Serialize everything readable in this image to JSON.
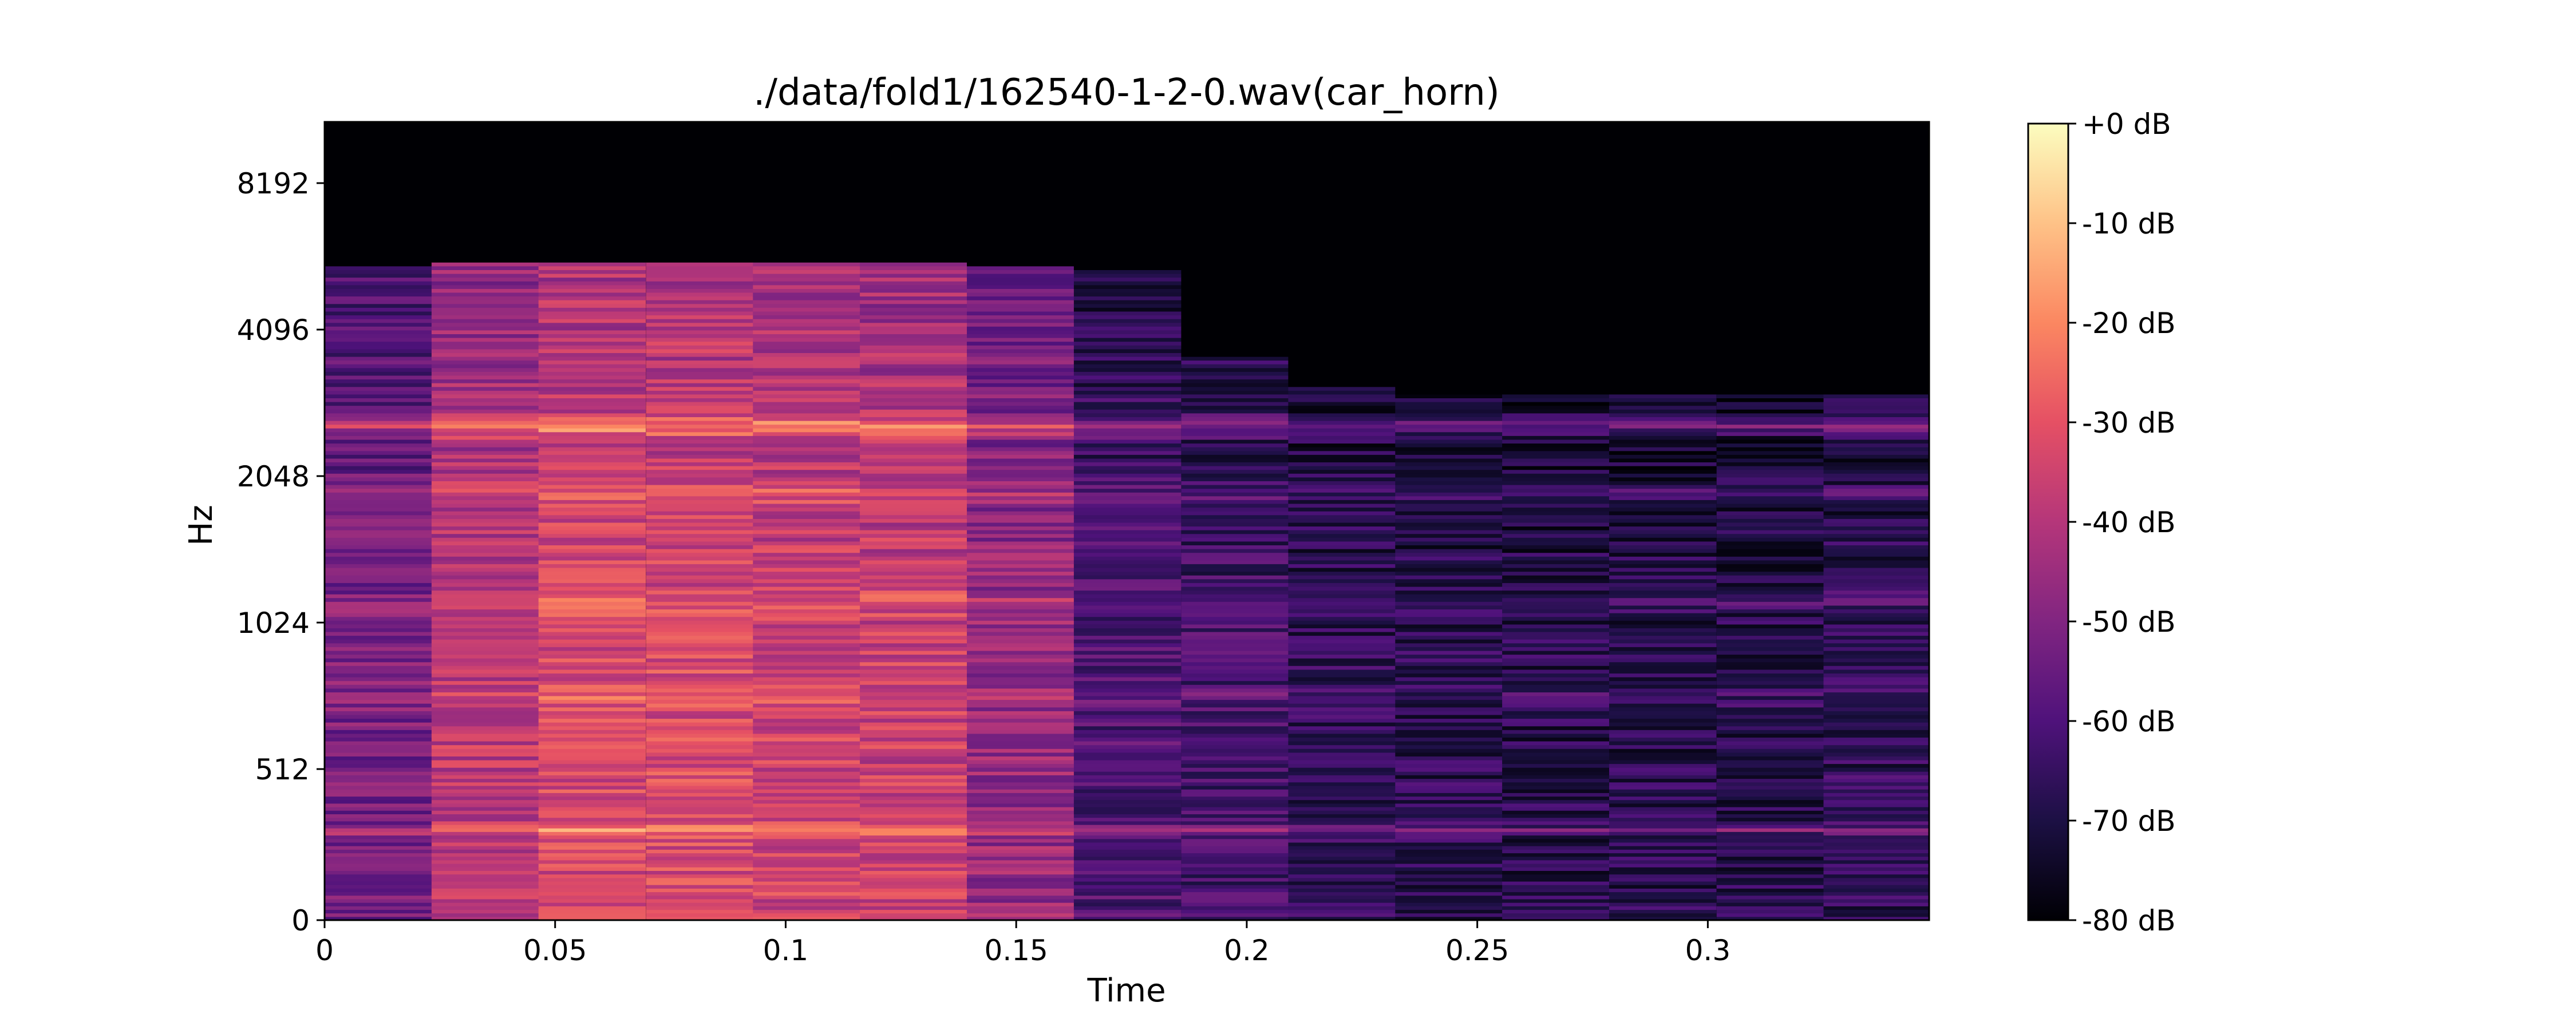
{
  "chart_data": {
    "type": "heatmap",
    "title": "./data/fold1/162540-1-2-0.wav(car_horn)",
    "xlabel": "Time",
    "ylabel": "Hz",
    "xlim": [
      0,
      0.348
    ],
    "x_ticks": [
      {
        "value": 0,
        "label": "0"
      },
      {
        "value": 0.05,
        "label": "0.05"
      },
      {
        "value": 0.1,
        "label": "0.1"
      },
      {
        "value": 0.15,
        "label": "0.15"
      },
      {
        "value": 0.2,
        "label": "0.2"
      },
      {
        "value": 0.25,
        "label": "0.25"
      },
      {
        "value": 0.3,
        "label": "0.3"
      }
    ],
    "y_scale": "symlog",
    "ylim": [
      0,
      11025
    ],
    "y_ticks": [
      {
        "value": 0,
        "label": "0"
      },
      {
        "value": 512,
        "label": "512"
      },
      {
        "value": 1024,
        "label": "1024"
      },
      {
        "value": 2048,
        "label": "2048"
      },
      {
        "value": 4096,
        "label": "4096"
      },
      {
        "value": 8192,
        "label": "8192"
      }
    ],
    "colormap": "magma",
    "colorbar": {
      "range_db": [
        -80,
        0
      ],
      "ticks": [
        {
          "value": 0,
          "label": "+0 dB"
        },
        {
          "value": -10,
          "label": "-10 dB"
        },
        {
          "value": -20,
          "label": "-20 dB"
        },
        {
          "value": -30,
          "label": "-30 dB"
        },
        {
          "value": -40,
          "label": "-40 dB"
        },
        {
          "value": -50,
          "label": "-50 dB"
        },
        {
          "value": -60,
          "label": "-60 dB"
        },
        {
          "value": -70,
          "label": "-70 dB"
        },
        {
          "value": -80,
          "label": "-80 dB"
        }
      ]
    },
    "frame_times": [
      0,
      0.0232,
      0.0464,
      0.0697,
      0.0929,
      0.1161,
      0.1393,
      0.1625,
      0.1858,
      0.209,
      0.2322,
      0.2554,
      0.2786,
      0.3019,
      0.3251
    ],
    "frame_duration": 0.0232,
    "frame_levels_db": [
      -52,
      -38,
      -33,
      -33,
      -35,
      -36,
      -46,
      -60,
      -62,
      -66,
      -67,
      -68,
      -68,
      -68,
      -66
    ],
    "frame_cutoff_hz": [
      5500,
      5600,
      5600,
      5600,
      5600,
      5600,
      5500,
      5400,
      3600,
      3100,
      3000,
      3000,
      3000,
      3000,
      3000
    ],
    "harmonics": [
      {
        "freq_hz": 330,
        "boost_db": 16
      },
      {
        "freq_hz": 2600,
        "boost_db": 18
      },
      {
        "freq_hz": 1150,
        "boost_db": 6
      },
      {
        "freq_hz": 1900,
        "boost_db": 8
      },
      {
        "freq_hz": 750,
        "boost_db": 5
      }
    ]
  }
}
